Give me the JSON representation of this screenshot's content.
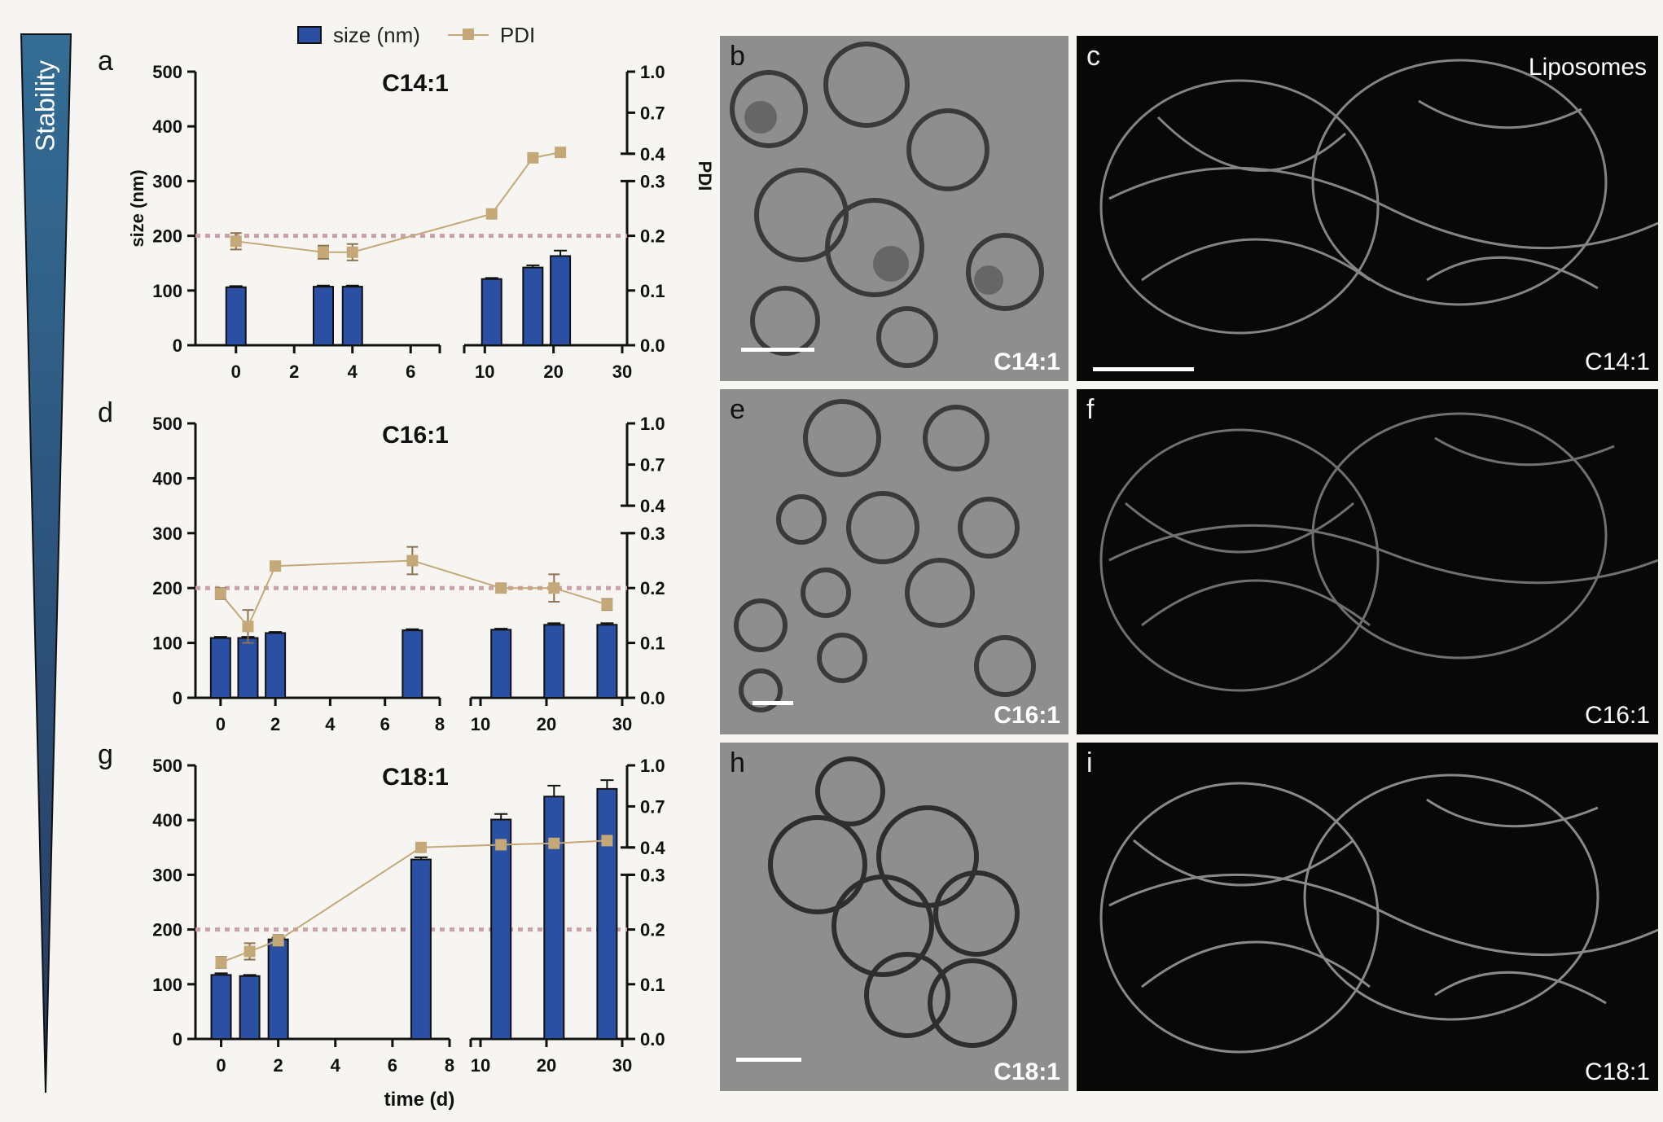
{
  "side_label": "Stability",
  "legend": {
    "bar": "size (nm)",
    "line": "PDI"
  },
  "shared": {
    "left_axis_label": "size (nm)",
    "right_axis_label": "PDI",
    "x_axis_label": "time (d)",
    "threshold_pdi": 0.2,
    "colors": {
      "bar": "#2a4fa3",
      "line": "#c4a877",
      "threshold": "#c9a1a6",
      "wedge_top": "#346d95",
      "wedge_bottom": "#263a62"
    }
  },
  "chart_data": [
    {
      "type": "bar",
      "letter": "a",
      "title": "C14:1",
      "xlabel": "",
      "ylabel": "size (nm)",
      "y2label": "PDI",
      "ylim": [
        0,
        500
      ],
      "y_ticks": [
        "0",
        "100",
        "200",
        "300",
        "400",
        "500"
      ],
      "y2_ticks_lower": [
        "0.0",
        "0.1",
        "0.2",
        "0.3"
      ],
      "y2_ticks_upper": [
        "0.4",
        "0.7",
        "1.0"
      ],
      "x_segment1_ticks": [
        "0",
        "2",
        "4",
        "6"
      ],
      "x_segment2_ticks": [
        "10",
        "20",
        "30"
      ],
      "x_segment1_range": [
        -1,
        7
      ],
      "x_segment2_range": [
        7,
        30
      ],
      "series": [
        {
          "name": "size (nm)",
          "x": [
            0,
            3,
            4,
            11,
            17,
            21
          ],
          "values": [
            106,
            107,
            107,
            121,
            142,
            163
          ],
          "errors": [
            2,
            2,
            2,
            2,
            4,
            10
          ]
        },
        {
          "name": "PDI",
          "x": [
            0,
            3,
            4,
            11,
            17,
            21
          ],
          "values": [
            0.19,
            0.17,
            0.17,
            0.24,
            0.37,
            0.41
          ],
          "errors": [
            0.015,
            0.012,
            0.015,
            0.0,
            0.0,
            0.0
          ]
        }
      ]
    },
    {
      "type": "bar",
      "letter": "d",
      "title": "C16:1",
      "xlabel": "",
      "ylabel": "",
      "y2label": "",
      "ylim": [
        0,
        500
      ],
      "y_ticks": [
        "0",
        "100",
        "200",
        "300",
        "400",
        "500"
      ],
      "y2_ticks_lower": [
        "0.0",
        "0.1",
        "0.2",
        "0.3"
      ],
      "y2_ticks_upper": [
        "0.4",
        "0.7",
        "1.0"
      ],
      "x_segment1_ticks": [
        "0",
        "2",
        "4",
        "6",
        "8"
      ],
      "x_segment2_ticks": [
        "10",
        "20",
        "30"
      ],
      "x_segment1_range": [
        -0.5,
        8
      ],
      "x_segment2_range": [
        10,
        30
      ],
      "series": [
        {
          "name": "size (nm)",
          "x": [
            0,
            1,
            2,
            7,
            14,
            21,
            28
          ],
          "values": [
            109,
            109,
            118,
            123,
            124,
            133,
            133
          ],
          "errors": [
            2,
            2,
            2,
            2,
            2,
            3,
            3
          ]
        },
        {
          "name": "PDI",
          "x": [
            0,
            1,
            2,
            7,
            14,
            21,
            28
          ],
          "values": [
            0.19,
            0.13,
            0.24,
            0.25,
            0.2,
            0.2,
            0.17
          ],
          "errors": [
            0.01,
            0.03,
            0.005,
            0.025,
            0.005,
            0.025,
            0.01
          ]
        }
      ]
    },
    {
      "type": "bar",
      "letter": "g",
      "title": "C18:1",
      "xlabel": "time (d)",
      "ylabel": "",
      "y2label": "",
      "ylim": [
        0,
        500
      ],
      "y_ticks": [
        "0",
        "100",
        "200",
        "300",
        "400",
        "500"
      ],
      "y2_ticks_lower": [
        "0.0",
        "0.1",
        "0.2",
        "0.3"
      ],
      "y2_ticks_upper": [
        "0.4",
        "0.7",
        "1.0"
      ],
      "x_segment1_ticks": [
        "0",
        "2",
        "4",
        "6",
        "8"
      ],
      "x_segment2_ticks": [
        "10",
        "20",
        "30"
      ],
      "x_segment1_range": [
        -0.5,
        8
      ],
      "x_segment2_range": [
        10,
        30
      ],
      "series": [
        {
          "name": "size (nm)",
          "x": [
            0,
            1,
            2,
            7,
            14,
            21,
            28
          ],
          "values": [
            117,
            115,
            182,
            328,
            401,
            443,
            457
          ],
          "errors": [
            3,
            2,
            3,
            4,
            10,
            20,
            16
          ]
        },
        {
          "name": "PDI",
          "x": [
            0,
            1,
            2,
            7,
            14,
            21,
            28
          ],
          "values": [
            0.14,
            0.16,
            0.18,
            0.4,
            0.42,
            0.43,
            0.45
          ],
          "errors": [
            0.01,
            0.015,
            0.01,
            0.0,
            0.0,
            0.0,
            0.0
          ]
        }
      ]
    }
  ],
  "micrographs": [
    {
      "letter": "b",
      "tag": "C14:1",
      "kind": "em"
    },
    {
      "letter": "c",
      "tag": "C14:1",
      "kind": "fl",
      "extra": "Liposomes"
    },
    {
      "letter": "e",
      "tag": "C16:1",
      "kind": "em"
    },
    {
      "letter": "f",
      "tag": "C16:1",
      "kind": "fl"
    },
    {
      "letter": "h",
      "tag": "C18:1",
      "kind": "em"
    },
    {
      "letter": "i",
      "tag": "C18:1",
      "kind": "fl"
    }
  ]
}
